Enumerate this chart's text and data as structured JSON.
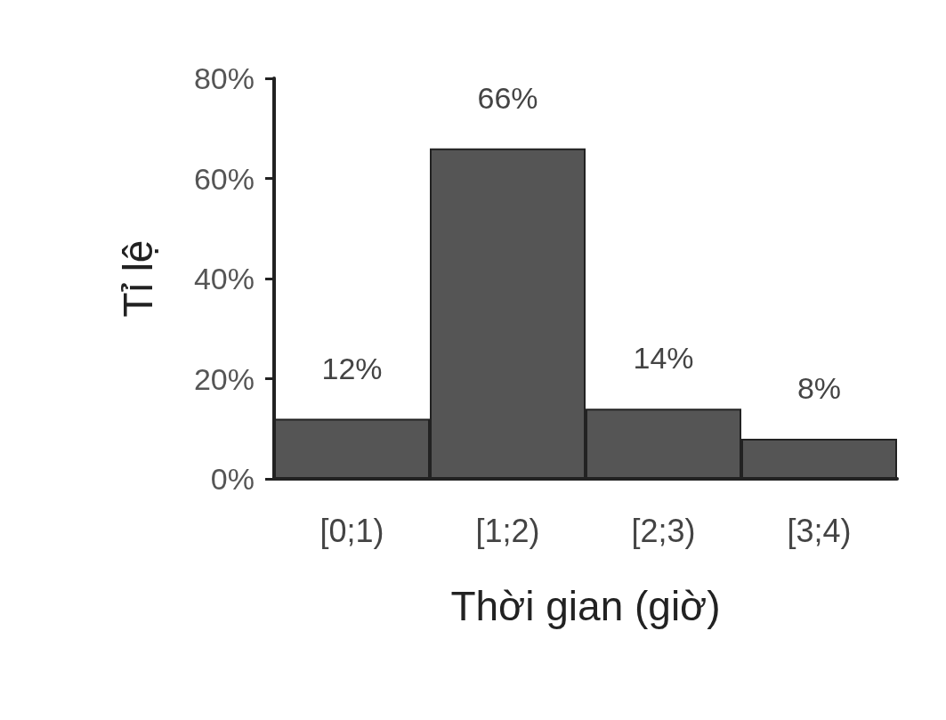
{
  "chart_data": {
    "type": "bar",
    "xlabel": "Thời gian (giờ)",
    "ylabel": "Tỉ lệ",
    "categories": [
      "[0;1)",
      "[1;2)",
      "[2;3)",
      "[3;4)"
    ],
    "values": [
      12,
      66,
      14,
      8
    ],
    "color": "#555555",
    "value_labels": [
      "12%",
      "66%",
      "14%",
      "8%"
    ],
    "ylim": [
      0,
      80
    ],
    "yticks": [
      {
        "value": 0,
        "label": "0%"
      },
      {
        "value": 20,
        "label": "20%"
      },
      {
        "value": 40,
        "label": "40%"
      },
      {
        "value": 60,
        "label": "60%"
      },
      {
        "value": 80,
        "label": "80%"
      }
    ],
    "grid": false
  }
}
